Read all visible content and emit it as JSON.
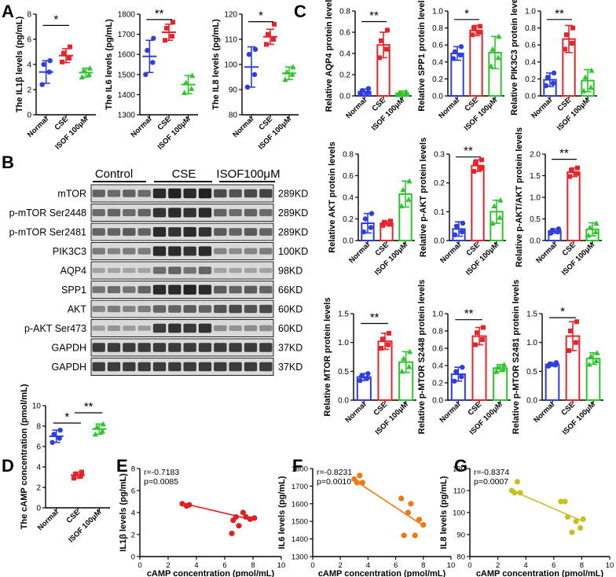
{
  "labels": {
    "A": "A",
    "B": "B",
    "C": "C",
    "D": "D",
    "E": "E",
    "F": "F",
    "G": "G"
  },
  "colors": {
    "normal": "#2f3ee0",
    "cse": "#e8242b",
    "isof": "#2cc62c",
    "corr_e": "#e02020",
    "corr_f": "#f07a10",
    "corr_g": "#c8c020",
    "band": "#1a1a1a"
  },
  "group_labels": [
    "Normal",
    "CSE",
    "ISOF 100μM"
  ],
  "blot": {
    "headers": [
      "Control",
      "CSE",
      "ISOF100μM"
    ],
    "rows": [
      {
        "name": "mTOR",
        "kd": "289KD"
      },
      {
        "name": "p-mTOR Ser2448",
        "kd": "289KD"
      },
      {
        "name": "p-mTOR Ser2481",
        "kd": "289KD"
      },
      {
        "name": "PIK3C3",
        "kd": "100KD"
      },
      {
        "name": "AQP4",
        "kd": "98KD"
      },
      {
        "name": "SPP1",
        "kd": "66KD"
      },
      {
        "name": "AKT",
        "kd": "60KD"
      },
      {
        "name": "p-AKT Ser473",
        "kd": "60KD"
      },
      {
        "name": "GAPDH",
        "kd": "37KD"
      },
      {
        "name": "GAPDH",
        "kd": "37KD"
      }
    ],
    "intensity": [
      [
        0.55,
        0.5,
        0.55,
        0.5,
        0.9,
        0.95,
        0.9,
        0.95,
        0.7,
        0.65,
        0.7,
        0.75
      ],
      [
        0.5,
        0.55,
        0.5,
        0.55,
        0.85,
        0.9,
        0.85,
        0.9,
        0.55,
        0.5,
        0.55,
        0.5
      ],
      [
        0.55,
        0.55,
        0.6,
        0.55,
        0.9,
        0.85,
        0.9,
        0.85,
        0.6,
        0.55,
        0.6,
        0.55
      ],
      [
        0.4,
        0.35,
        0.4,
        0.4,
        0.9,
        0.9,
        0.85,
        0.9,
        0.35,
        0.3,
        0.35,
        0.4
      ],
      [
        0.15,
        0.15,
        0.15,
        0.15,
        0.5,
        0.55,
        0.45,
        0.55,
        0.15,
        0.15,
        0.15,
        0.15
      ],
      [
        0.45,
        0.5,
        0.45,
        0.55,
        0.9,
        0.9,
        0.95,
        0.9,
        0.6,
        0.55,
        0.6,
        0.55
      ],
      [
        0.35,
        0.4,
        0.35,
        0.4,
        0.55,
        0.55,
        0.6,
        0.55,
        0.65,
        0.7,
        0.65,
        0.7
      ],
      [
        0.2,
        0.25,
        0.2,
        0.2,
        0.8,
        0.85,
        0.8,
        0.85,
        0.3,
        0.25,
        0.3,
        0.3
      ],
      [
        0.8,
        0.8,
        0.8,
        0.8,
        0.8,
        0.8,
        0.8,
        0.8,
        0.8,
        0.8,
        0.8,
        0.8
      ],
      [
        0.8,
        0.8,
        0.8,
        0.8,
        0.8,
        0.8,
        0.8,
        0.8,
        0.8,
        0.8,
        0.8,
        0.8
      ]
    ]
  },
  "chart_data": [
    {
      "id": "IL1b",
      "panel": "A",
      "type": "scatter_bar",
      "ylabel": "The IL1β levels (pg/mL)",
      "ylim": [
        0,
        8
      ],
      "ticks": [
        0,
        2,
        4,
        6,
        8
      ],
      "categories": [
        "Normal",
        "CSE",
        "ISOF 100μM"
      ],
      "groups": [
        {
          "mean": 3.4,
          "sd": 0.9,
          "points": [
            2.4,
            3.4,
            4.0,
            4.3
          ]
        },
        {
          "mean": 4.7,
          "sd": 0.55,
          "points": [
            4.2,
            4.5,
            4.9,
            5.4
          ]
        },
        {
          "mean": 3.35,
          "sd": 0.35,
          "points": [
            3.0,
            3.2,
            3.5,
            3.7
          ]
        }
      ],
      "sig": [
        {
          "from": 0,
          "to": 1,
          "label": "*",
          "y": 7.1
        }
      ]
    },
    {
      "id": "IL6",
      "panel": "A",
      "type": "scatter_bar",
      "ylabel": "The IL6 levels (pg/mL)",
      "ylim": [
        1300,
        1800
      ],
      "ticks": [
        1300,
        1400,
        1500,
        1600,
        1700,
        1800
      ],
      "categories": [
        "Normal",
        "CSE",
        "ISOF 100μM"
      ],
      "groups": [
        {
          "mean": 1590,
          "sd": 80,
          "points": [
            1500,
            1560,
            1620,
            1680
          ]
        },
        {
          "mean": 1710,
          "sd": 40,
          "points": [
            1670,
            1690,
            1730,
            1760
          ]
        },
        {
          "mean": 1450,
          "sd": 45,
          "points": [
            1410,
            1430,
            1460,
            1495
          ]
        }
      ],
      "sig": [
        {
          "from": 0,
          "to": 1,
          "label": "**",
          "y": 1773
        }
      ]
    },
    {
      "id": "IL8",
      "panel": "A",
      "type": "scatter_bar",
      "ylabel": "The IL8 levels (pg/mL)",
      "ylim": [
        80,
        120
      ],
      "ticks": [
        80,
        90,
        100,
        110,
        120
      ],
      "categories": [
        "Normal",
        "CSE",
        "ISOF 100μM"
      ],
      "groups": [
        {
          "mean": 99,
          "sd": 8,
          "points": [
            91,
            96,
            104,
            106
          ]
        },
        {
          "mean": 111,
          "sd": 3,
          "points": [
            108,
            110,
            112,
            116
          ]
        },
        {
          "mean": 96.5,
          "sd": 2.5,
          "points": [
            94,
            96,
            97,
            99
          ]
        }
      ],
      "sig": [
        {
          "from": 0,
          "to": 1,
          "label": "*",
          "y": 117
        }
      ]
    },
    {
      "id": "AQP4",
      "panel": "C",
      "type": "bar",
      "ylabel": "Relative AQP4 protein levels",
      "ylim": [
        0,
        0.8
      ],
      "ticks": [
        0,
        0.2,
        0.4,
        0.6,
        0.8
      ],
      "tick_fmt": 1,
      "categories": [
        "Normal",
        "CSE",
        "ISOF 100μM"
      ],
      "groups": [
        {
          "mean": 0.04,
          "sd": 0.025,
          "points": [
            0.02,
            0.03,
            0.05,
            0.07
          ]
        },
        {
          "mean": 0.48,
          "sd": 0.12,
          "points": [
            0.36,
            0.44,
            0.52,
            0.62
          ]
        },
        {
          "mean": 0.025,
          "sd": 0.02,
          "points": [
            0.01,
            0.02,
            0.03,
            0.04
          ]
        }
      ],
      "sig": [
        {
          "from": 0,
          "to": 1,
          "label": "**",
          "y": 0.7
        }
      ]
    },
    {
      "id": "SPP1",
      "panel": "C",
      "type": "bar",
      "ylabel": "Relative SPP1 protein levels",
      "ylim": [
        0,
        1.0
      ],
      "ticks": [
        0,
        0.2,
        0.4,
        0.6,
        0.8,
        1.0
      ],
      "tick_fmt": 1,
      "categories": [
        "Normal",
        "CSE",
        "ISOF 100μM"
      ],
      "groups": [
        {
          "mean": 0.5,
          "sd": 0.08,
          "points": [
            0.44,
            0.48,
            0.52,
            0.58
          ]
        },
        {
          "mean": 0.77,
          "sd": 0.06,
          "points": [
            0.72,
            0.75,
            0.8,
            0.82
          ]
        },
        {
          "mean": 0.51,
          "sd": 0.19,
          "points": [
            0.35,
            0.45,
            0.55,
            0.7
          ]
        }
      ],
      "sig": [
        {
          "from": 0,
          "to": 1,
          "label": "*",
          "y": 0.9
        }
      ]
    },
    {
      "id": "PIK3C3",
      "panel": "C",
      "type": "bar",
      "ylabel": "Relative PIK3C3 protein levels",
      "ylim": [
        0,
        1.0
      ],
      "ticks": [
        0,
        0.2,
        0.4,
        0.6,
        0.8,
        1.0
      ],
      "tick_fmt": 1,
      "categories": [
        "Normal",
        "CSE",
        "ISOF 100μM"
      ],
      "groups": [
        {
          "mean": 0.19,
          "sd": 0.08,
          "points": [
            0.12,
            0.15,
            0.22,
            0.27
          ]
        },
        {
          "mean": 0.67,
          "sd": 0.16,
          "points": [
            0.55,
            0.62,
            0.72,
            0.8
          ]
        },
        {
          "mean": 0.18,
          "sd": 0.13,
          "points": [
            0.06,
            0.1,
            0.22,
            0.3
          ]
        }
      ],
      "sig": [
        {
          "from": 0,
          "to": 1,
          "label": "**",
          "y": 0.9
        }
      ]
    },
    {
      "id": "AKT",
      "panel": "C",
      "type": "bar",
      "ylabel": "Relative AKT protein levels",
      "ylim": [
        0,
        0.8
      ],
      "ticks": [
        0,
        0.2,
        0.4,
        0.6,
        0.8
      ],
      "tick_fmt": 1,
      "categories": [
        "Normal",
        "CSE",
        "ISOF 100μM"
      ],
      "groups": [
        {
          "mean": 0.16,
          "sd": 0.09,
          "points": [
            0.08,
            0.12,
            0.2,
            0.25
          ]
        },
        {
          "mean": 0.16,
          "sd": 0.02,
          "points": [
            0.14,
            0.15,
            0.17,
            0.18
          ]
        },
        {
          "mean": 0.43,
          "sd": 0.12,
          "points": [
            0.32,
            0.38,
            0.47,
            0.55
          ]
        }
      ],
      "sig": []
    },
    {
      "id": "pAKT",
      "panel": "C",
      "type": "bar",
      "ylabel": "Relative p-AKT protein levels",
      "ylim": [
        0,
        0.3
      ],
      "ticks": [
        0,
        0.1,
        0.2,
        0.3
      ],
      "tick_fmt": 1,
      "categories": [
        "Normal",
        "CSE",
        "ISOF 100μM"
      ],
      "groups": [
        {
          "mean": 0.04,
          "sd": 0.025,
          "points": [
            0.02,
            0.03,
            0.05,
            0.06
          ]
        },
        {
          "mean": 0.26,
          "sd": 0.02,
          "points": [
            0.24,
            0.25,
            0.27,
            0.28
          ]
        },
        {
          "mean": 0.1,
          "sd": 0.04,
          "points": [
            0.06,
            0.08,
            0.12,
            0.14
          ]
        }
      ],
      "sig": [
        {
          "from": 0,
          "to": 1,
          "label": "**",
          "y": 0.29
        }
      ]
    },
    {
      "id": "pAKTAKT",
      "panel": "C",
      "type": "bar",
      "ylabel": "Relative p-AKT/AKT protein levels",
      "ylim": [
        0,
        2.0
      ],
      "ticks": [
        0,
        0.5,
        1.0,
        1.5,
        2.0
      ],
      "tick_fmt": 1,
      "categories": [
        "Normal",
        "CSE",
        "ISOF 100μM"
      ],
      "groups": [
        {
          "mean": 0.22,
          "sd": 0.05,
          "points": [
            0.17,
            0.2,
            0.24,
            0.27
          ]
        },
        {
          "mean": 1.58,
          "sd": 0.1,
          "points": [
            1.48,
            1.55,
            1.62,
            1.68
          ]
        },
        {
          "mean": 0.26,
          "sd": 0.15,
          "points": [
            0.12,
            0.2,
            0.3,
            0.4
          ]
        }
      ],
      "sig": [
        {
          "from": 0,
          "to": 1,
          "label": "**",
          "y": 1.88
        }
      ]
    },
    {
      "id": "MTOR",
      "panel": "C",
      "type": "bar",
      "ylabel": "Relative MTOR protein levels",
      "ylim": [
        0,
        1.5
      ],
      "ticks": [
        0,
        0.5,
        1.0,
        1.5
      ],
      "tick_fmt": 1,
      "categories": [
        "Normal",
        "CSE",
        "ISOF 100μM"
      ],
      "groups": [
        {
          "mean": 0.4,
          "sd": 0.06,
          "points": [
            0.34,
            0.38,
            0.42,
            0.46
          ]
        },
        {
          "mean": 1.02,
          "sd": 0.14,
          "points": [
            0.9,
            0.96,
            1.06,
            1.16
          ]
        },
        {
          "mean": 0.66,
          "sd": 0.18,
          "points": [
            0.5,
            0.58,
            0.72,
            0.84
          ]
        }
      ],
      "sig": [
        {
          "from": 0,
          "to": 1,
          "label": "**",
          "y": 1.33
        }
      ]
    },
    {
      "id": "pMTOR2448",
      "panel": "C",
      "type": "bar",
      "ylabel": "Relative p-MTOR S2448 protein levels",
      "ylim": [
        0,
        1.0
      ],
      "ticks": [
        0,
        0.2,
        0.4,
        0.6,
        0.8,
        1.0
      ],
      "tick_fmt": 1,
      "categories": [
        "Normal",
        "CSE",
        "ISOF 100μM"
      ],
      "groups": [
        {
          "mean": 0.3,
          "sd": 0.08,
          "points": [
            0.22,
            0.27,
            0.33,
            0.38
          ]
        },
        {
          "mean": 0.74,
          "sd": 0.1,
          "points": [
            0.64,
            0.7,
            0.78,
            0.84
          ]
        },
        {
          "mean": 0.37,
          "sd": 0.04,
          "points": [
            0.33,
            0.36,
            0.38,
            0.41
          ]
        }
      ],
      "sig": [
        {
          "from": 0,
          "to": 1,
          "label": "**",
          "y": 0.93
        }
      ]
    },
    {
      "id": "pMTOR2481",
      "panel": "C",
      "type": "bar",
      "ylabel": "Relative p-MTOR S2481 protein levels",
      "ylim": [
        0,
        1.5
      ],
      "ticks": [
        0,
        0.5,
        1.0,
        1.5
      ],
      "tick_fmt": 1,
      "categories": [
        "Normal",
        "CSE",
        "ISOF 100μM"
      ],
      "groups": [
        {
          "mean": 0.62,
          "sd": 0.03,
          "points": [
            0.59,
            0.61,
            0.63,
            0.65
          ]
        },
        {
          "mean": 1.11,
          "sd": 0.25,
          "points": [
            0.86,
            1.0,
            1.2,
            1.36
          ]
        },
        {
          "mean": 0.72,
          "sd": 0.1,
          "points": [
            0.62,
            0.68,
            0.76,
            0.82
          ]
        }
      ],
      "sig": [
        {
          "from": 0,
          "to": 1,
          "label": "*",
          "y": 1.43
        }
      ]
    },
    {
      "id": "cAMP",
      "panel": "D",
      "type": "scatter_bar",
      "ylabel": "The cAMP concentration (pmol/mL)",
      "ylim": [
        0,
        10
      ],
      "ticks": [
        0,
        2,
        4,
        6,
        8,
        10
      ],
      "categories": [
        "Normal",
        "CSE",
        "ISOF 100μM"
      ],
      "groups": [
        {
          "mean": 7.0,
          "sd": 0.6,
          "points": [
            6.4,
            6.8,
            7.2,
            7.6
          ]
        },
        {
          "mean": 3.2,
          "sd": 0.3,
          "points": [
            2.9,
            3.1,
            3.3,
            3.5
          ]
        },
        {
          "mean": 7.7,
          "sd": 0.5,
          "points": [
            7.2,
            7.5,
            7.9,
            8.2
          ]
        }
      ],
      "sig": [
        {
          "from": 0,
          "to": 1,
          "label": "*",
          "y": 8.3
        },
        {
          "from": 1,
          "to": 2,
          "label": "**",
          "y": 9.3
        }
      ]
    },
    {
      "id": "corrIL1b",
      "panel": "E",
      "type": "scatter",
      "xlabel": "cAMP concentration (pmol/mL)",
      "ylabel": "IL1β levels (pg/mL)",
      "xlim": [
        0,
        10
      ],
      "ylim": [
        0,
        8
      ],
      "xticks": [
        0,
        2,
        4,
        6,
        8,
        10
      ],
      "yticks": [
        0,
        2,
        4,
        6,
        8
      ],
      "r": "r=-0.7183",
      "p": "p=0.0085",
      "points": [
        [
          3.0,
          4.8
        ],
        [
          3.3,
          4.6
        ],
        [
          3.5,
          4.7
        ],
        [
          6.5,
          2.1
        ],
        [
          6.6,
          3.3
        ],
        [
          6.8,
          3.6
        ],
        [
          7.0,
          2.8
        ],
        [
          7.3,
          4.0
        ],
        [
          7.5,
          3.6
        ],
        [
          7.8,
          3.4
        ],
        [
          8.1,
          3.5
        ]
      ],
      "fit": [
        [
          3.0,
          4.85
        ],
        [
          8.1,
          3.3
        ]
      ]
    },
    {
      "id": "corrIL6",
      "panel": "F",
      "type": "scatter",
      "xlabel": "cAMP concentration (pmol/mL)",
      "ylabel": "IL6 levels (pg/mL)",
      "xlim": [
        0,
        10
      ],
      "ylim": [
        1300,
        1800
      ],
      "xticks": [
        0,
        2,
        4,
        6,
        8,
        10
      ],
      "yticks": [
        1300,
        1400,
        1500,
        1600,
        1700,
        1800
      ],
      "r": "r=-0.8231",
      "p": "p=0.0010",
      "points": [
        [
          3.0,
          1740
        ],
        [
          3.2,
          1720
        ],
        [
          3.4,
          1760
        ],
        [
          3.6,
          1720
        ],
        [
          6.4,
          1630
        ],
        [
          6.6,
          1420
        ],
        [
          6.9,
          1550
        ],
        [
          7.1,
          1600
        ],
        [
          7.4,
          1420
        ],
        [
          7.7,
          1510
        ],
        [
          8.0,
          1480
        ]
      ],
      "fit": [
        [
          3.0,
          1735
        ],
        [
          8.1,
          1470
        ]
      ]
    },
    {
      "id": "corrIL8",
      "panel": "G",
      "type": "scatter",
      "xlabel": "cAMP concentration (pmol/mL)",
      "ylabel": "IL8 levels (pg/mL)",
      "xlim": [
        0,
        10
      ],
      "ylim": [
        80,
        120
      ],
      "xticks": [
        0,
        2,
        4,
        6,
        8,
        10
      ],
      "yticks": [
        80,
        90,
        100,
        110,
        120
      ],
      "r": "r=-0.8374",
      "p": "p=0.0007",
      "points": [
        [
          3.0,
          110
        ],
        [
          3.2,
          109
        ],
        [
          3.4,
          114
        ],
        [
          3.6,
          109
        ],
        [
          6.5,
          105
        ],
        [
          6.8,
          105
        ],
        [
          7.0,
          98
        ],
        [
          7.3,
          91
        ],
        [
          7.6,
          96
        ],
        [
          7.9,
          93
        ],
        [
          8.1,
          97
        ]
      ],
      "fit": [
        [
          3.0,
          110
        ],
        [
          8.1,
          96
        ]
      ]
    }
  ]
}
